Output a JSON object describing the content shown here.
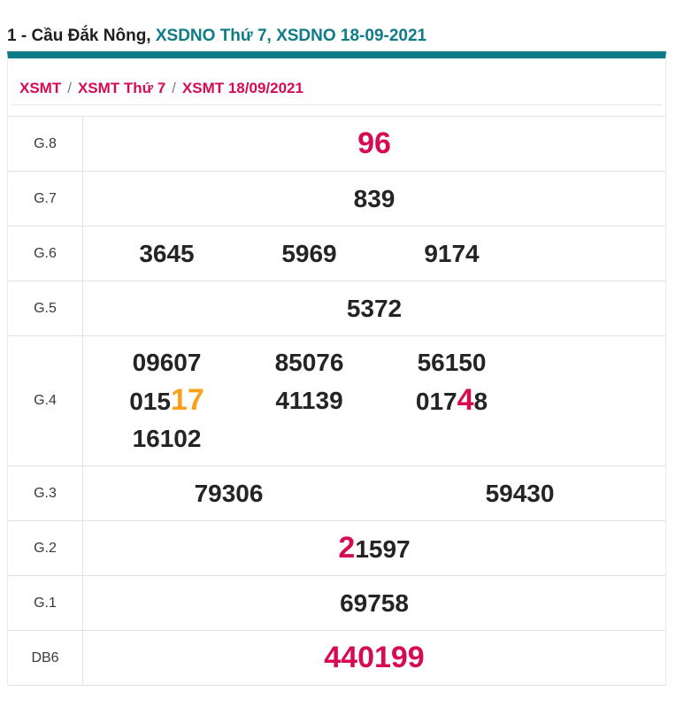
{
  "title": {
    "prefix": "1 - Cầu Đắk Nông, ",
    "link": "XSDNO Thứ 7, XSDNO 18-09-2021"
  },
  "breadcrumb": {
    "separator": "/",
    "items": [
      "XSMT",
      "XSMT Thứ 7",
      "XSMT 18/09/2021"
    ]
  },
  "colors": {
    "teal": "#0e7b86",
    "crimson": "#d60b51",
    "orange": "#faa01c",
    "border": "#e2e2e2"
  },
  "table": {
    "rows": [
      {
        "label": "G.8",
        "cols": 1,
        "values": [
          {
            "parts": [
              {
                "text": "96",
                "color": "crimson",
                "large": true
              }
            ]
          }
        ]
      },
      {
        "label": "G.7",
        "cols": 1,
        "values": [
          {
            "parts": [
              {
                "text": "839"
              }
            ]
          }
        ]
      },
      {
        "label": "G.6",
        "cols": 4,
        "values": [
          {
            "parts": [
              {
                "text": "3645"
              }
            ]
          },
          {
            "parts": [
              {
                "text": "5969"
              }
            ]
          },
          {
            "parts": [
              {
                "text": "9174"
              }
            ]
          }
        ]
      },
      {
        "label": "G.5",
        "cols": 1,
        "values": [
          {
            "parts": [
              {
                "text": "5372"
              }
            ]
          }
        ]
      },
      {
        "label": "G.4",
        "cols": 4,
        "tall": true,
        "values": [
          {
            "parts": [
              {
                "text": "09607"
              }
            ]
          },
          {
            "parts": [
              {
                "text": "85076"
              }
            ]
          },
          {
            "parts": [
              {
                "text": "56150"
              }
            ]
          },
          {
            "parts": [
              {
                "text": "015"
              },
              {
                "text": "17",
                "color": "orange",
                "large": true
              }
            ]
          },
          {
            "parts": [
              {
                "text": "41139"
              }
            ]
          },
          {
            "parts": [
              {
                "text": "017"
              },
              {
                "text": "4",
                "color": "crimson",
                "large": true
              },
              {
                "text": "8"
              }
            ]
          },
          {
            "parts": [
              {
                "text": "16102"
              }
            ]
          }
        ]
      },
      {
        "label": "G.3",
        "cols": 2,
        "values": [
          {
            "parts": [
              {
                "text": "79306"
              }
            ]
          },
          {
            "parts": [
              {
                "text": "59430"
              }
            ]
          }
        ]
      },
      {
        "label": "G.2",
        "cols": 1,
        "values": [
          {
            "parts": [
              {
                "text": "2",
                "color": "crimson",
                "large": true
              },
              {
                "text": "1597"
              }
            ]
          }
        ]
      },
      {
        "label": "G.1",
        "cols": 1,
        "values": [
          {
            "parts": [
              {
                "text": "69758"
              }
            ]
          }
        ]
      },
      {
        "label": "DB6",
        "cols": 1,
        "values": [
          {
            "parts": [
              {
                "text": "440199",
                "color": "crimson",
                "large": true
              }
            ]
          }
        ]
      }
    ]
  }
}
